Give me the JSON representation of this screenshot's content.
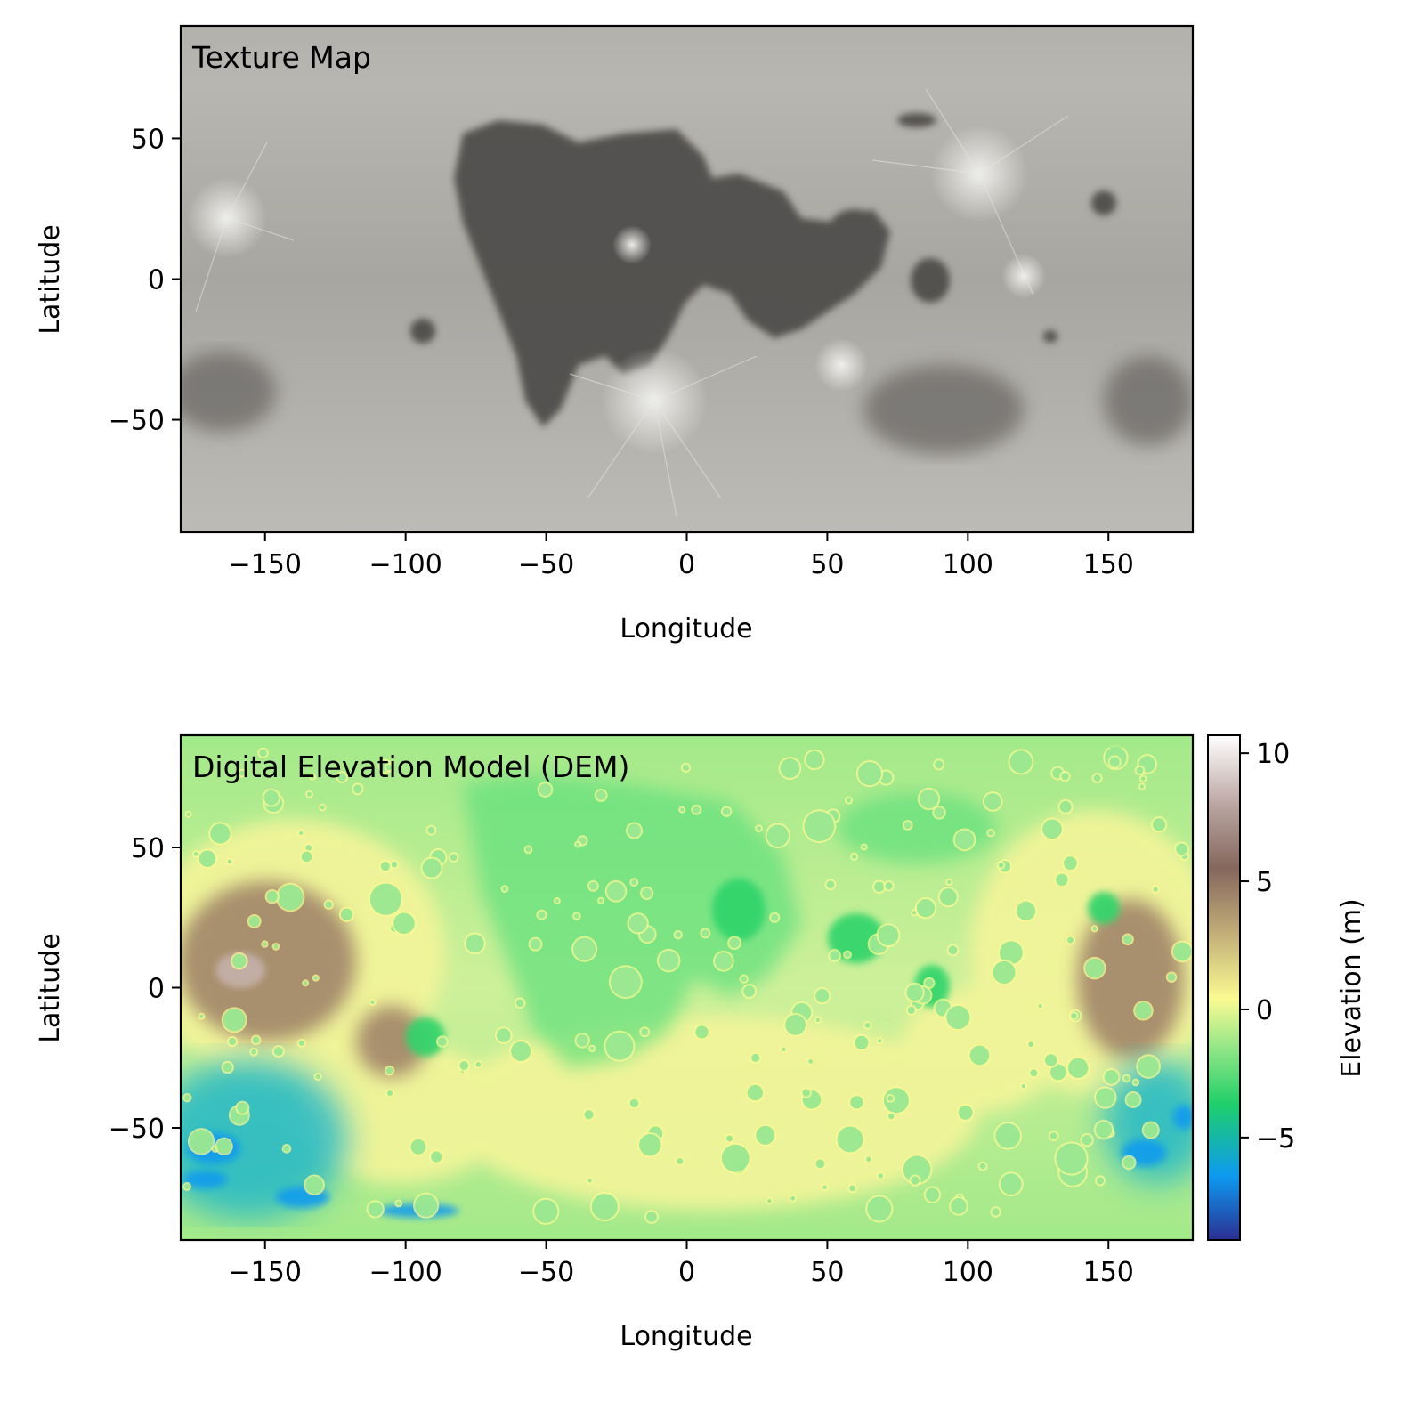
{
  "chart_data": [
    {
      "type": "heatmap",
      "annotation": "Texture Map",
      "xlabel": "Longitude",
      "ylabel": "Latitude",
      "xlim": [
        -180,
        180
      ],
      "ylim": [
        -90,
        90
      ],
      "xticks": [
        -150,
        -100,
        -50,
        0,
        50,
        100,
        150
      ],
      "yticks": [
        -50,
        0,
        50
      ],
      "colormap": "gray",
      "colors": {
        "background": "#a6a49f",
        "mare": "#4a4846",
        "highland": "#b8b6b1"
      }
    },
    {
      "type": "heatmap",
      "annotation": "Digital Elevation Model (DEM)",
      "xlabel": "Longitude",
      "ylabel": "Latitude",
      "xlim": [
        -180,
        180
      ],
      "ylim": [
        -90,
        90
      ],
      "xticks": [
        -150,
        -100,
        -50,
        0,
        50,
        100,
        150
      ],
      "yticks": [
        -50,
        0,
        50
      ],
      "colormap": "terrain",
      "colorbar": {
        "label": "Elevation (m)",
        "range": [
          -9,
          10.7
        ],
        "ticks": [
          10,
          5,
          0,
          -5
        ],
        "stops": [
          {
            "value": -9.0,
            "color": "#2b2f93"
          },
          {
            "value": -6.5,
            "color": "#0d9af0"
          },
          {
            "value": -3.7,
            "color": "#1fcf6a"
          },
          {
            "value": -1.2,
            "color": "#a3e98a"
          },
          {
            "value": 0.4,
            "color": "#fafa92"
          },
          {
            "value": 3.0,
            "color": "#c2ad78"
          },
          {
            "value": 5.5,
            "color": "#85675e"
          },
          {
            "value": 8.0,
            "color": "#bba6a2"
          },
          {
            "value": 10.7,
            "color": "#ffffff"
          }
        ]
      }
    }
  ]
}
